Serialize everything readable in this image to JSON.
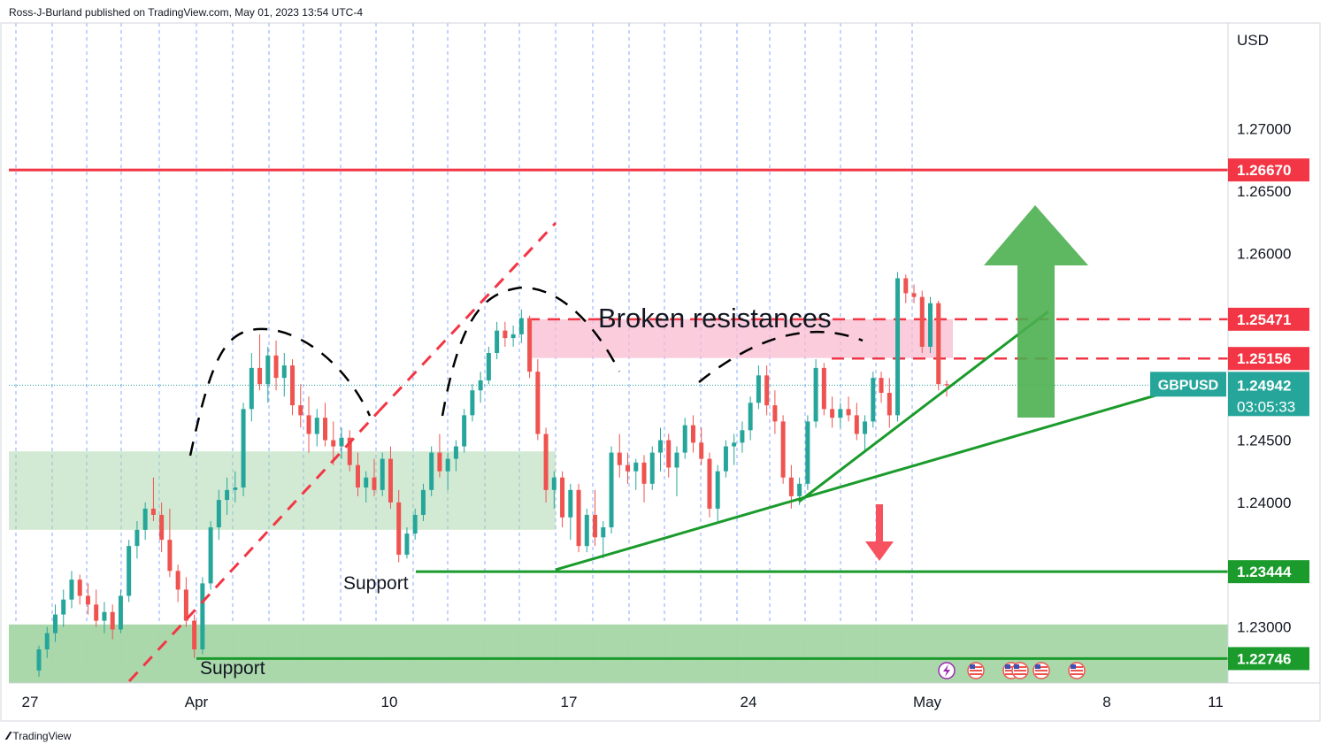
{
  "header": {
    "published_by": "Ross-J-Burland published on TradingView.com, May 01, 2023 13:54 UTC-4"
  },
  "footer": {
    "brand": "TradingView"
  },
  "colors": {
    "up": "#26a69a",
    "down": "#ef5350",
    "resistance": "#f23645",
    "support": "#1a9b2b",
    "arrow_up": "#4caf50",
    "arrow_down": "#f7525f",
    "zone_green": "#a5d6a7",
    "zone_pink": "#f8bbd0",
    "grid": "#2962ff"
  },
  "chart_data": {
    "type": "candlestick",
    "symbol": "GBPUSD",
    "currency": "USD",
    "ylim": [
      1.2255,
      1.2785
    ],
    "y_ticks": [
      "1.27000",
      "1.26500",
      "1.26000",
      "1.24500",
      "1.24000",
      "1.23000"
    ],
    "x_ticks": [
      "27",
      "Apr",
      "10",
      "17",
      "24",
      "May",
      "8",
      "11"
    ],
    "price_labels": [
      {
        "value": "1.26670",
        "kind": "resistance"
      },
      {
        "value": "1.25471",
        "kind": "resistance"
      },
      {
        "value": "1.25156",
        "kind": "resistance"
      },
      {
        "value": "1.23444",
        "kind": "support"
      },
      {
        "value": "1.22746",
        "kind": "support"
      }
    ],
    "last_price": {
      "symbol": "GBPUSD",
      "value": "1.24942",
      "countdown": "03:05:33"
    },
    "annotations": {
      "broken": "Broken resistances",
      "support_upper": "Support",
      "support_lower": "Support"
    },
    "horizontal_levels": {
      "resistance_top": 1.2667,
      "res1": 1.25471,
      "res2": 1.25156,
      "sup1": 1.23444,
      "sup2": 1.22746
    },
    "zones": [
      {
        "from": 1.2378,
        "to": 1.2441,
        "color": "green"
      },
      {
        "from": 1.2255,
        "to": 1.2302,
        "color": "green"
      },
      {
        "from": 1.2516,
        "to": 1.2547,
        "color": "pink"
      }
    ],
    "candles": [
      [
        1.2265,
        1.2285,
        1.226,
        1.2282
      ],
      [
        1.2282,
        1.23,
        1.2275,
        1.2295
      ],
      [
        1.2295,
        1.2318,
        1.2288,
        1.231
      ],
      [
        1.231,
        1.233,
        1.23,
        1.2322
      ],
      [
        1.2322,
        1.2345,
        1.2315,
        1.2338
      ],
      [
        1.2338,
        1.2342,
        1.2318,
        1.2325
      ],
      [
        1.2325,
        1.2335,
        1.231,
        1.2318
      ],
      [
        1.2318,
        1.233,
        1.23,
        1.2305
      ],
      [
        1.2305,
        1.232,
        1.2295,
        1.2312
      ],
      [
        1.2312,
        1.2318,
        1.229,
        1.2298
      ],
      [
        1.2298,
        1.233,
        1.2295,
        1.2325
      ],
      [
        1.2325,
        1.237,
        1.232,
        1.2365
      ],
      [
        1.2365,
        1.2385,
        1.2355,
        1.2378
      ],
      [
        1.2378,
        1.24,
        1.237,
        1.2395
      ],
      [
        1.2395,
        1.242,
        1.2385,
        1.239
      ],
      [
        1.239,
        1.24,
        1.236,
        1.237
      ],
      [
        1.237,
        1.2395,
        1.234,
        1.2345
      ],
      [
        1.2345,
        1.235,
        1.232,
        1.233
      ],
      [
        1.233,
        1.234,
        1.23,
        1.2305
      ],
      [
        1.2305,
        1.231,
        1.2275,
        1.2282
      ],
      [
        1.2282,
        1.234,
        1.2278,
        1.2335
      ],
      [
        1.2335,
        1.2385,
        1.233,
        1.238
      ],
      [
        1.238,
        1.241,
        1.237,
        1.2402
      ],
      [
        1.2402,
        1.242,
        1.239,
        1.241
      ],
      [
        1.241,
        1.2425,
        1.24,
        1.2412
      ],
      [
        1.2412,
        1.248,
        1.2405,
        1.2475
      ],
      [
        1.2475,
        1.252,
        1.2465,
        1.2508
      ],
      [
        1.2508,
        1.2535,
        1.249,
        1.2495
      ],
      [
        1.2495,
        1.2525,
        1.248,
        1.2518
      ],
      [
        1.2518,
        1.253,
        1.249,
        1.25
      ],
      [
        1.25,
        1.252,
        1.2485,
        1.251
      ],
      [
        1.251,
        1.2515,
        1.247,
        1.2478
      ],
      [
        1.2478,
        1.2495,
        1.246,
        1.247
      ],
      [
        1.247,
        1.2485,
        1.244,
        1.2455
      ],
      [
        1.2455,
        1.2475,
        1.2445,
        1.2468
      ],
      [
        1.2468,
        1.248,
        1.2445,
        1.245
      ],
      [
        1.245,
        1.2465,
        1.243,
        1.2445
      ],
      [
        1.2445,
        1.246,
        1.2435,
        1.2452
      ],
      [
        1.2452,
        1.2458,
        1.2425,
        1.243
      ],
      [
        1.243,
        1.244,
        1.2405,
        1.2412
      ],
      [
        1.2412,
        1.2425,
        1.24,
        1.242
      ],
      [
        1.242,
        1.2435,
        1.2405,
        1.241
      ],
      [
        1.241,
        1.244,
        1.2405,
        1.2435
      ],
      [
        1.2435,
        1.2445,
        1.2395,
        1.24
      ],
      [
        1.24,
        1.241,
        1.2352,
        1.2358
      ],
      [
        1.2358,
        1.238,
        1.2355,
        1.2375
      ],
      [
        1.2375,
        1.2395,
        1.237,
        1.239
      ],
      [
        1.239,
        1.2415,
        1.2385,
        1.241
      ],
      [
        1.241,
        1.2445,
        1.2405,
        1.244
      ],
      [
        1.244,
        1.2455,
        1.242,
        1.2425
      ],
      [
        1.2425,
        1.244,
        1.241,
        1.2435
      ],
      [
        1.2435,
        1.245,
        1.2425,
        1.2445
      ],
      [
        1.2445,
        1.2475,
        1.244,
        1.247
      ],
      [
        1.247,
        1.2495,
        1.2465,
        1.249
      ],
      [
        1.249,
        1.2505,
        1.248,
        1.2498
      ],
      [
        1.2498,
        1.2525,
        1.2495,
        1.252
      ],
      [
        1.252,
        1.2545,
        1.2515,
        1.2538
      ],
      [
        1.2538,
        1.2545,
        1.2525,
        1.2532
      ],
      [
        1.2532,
        1.2542,
        1.2525,
        1.2535
      ],
      [
        1.2535,
        1.2555,
        1.2528,
        1.2548
      ],
      [
        1.2548,
        1.255,
        1.25,
        1.2505
      ],
      [
        1.2505,
        1.2515,
        1.245,
        1.2455
      ],
      [
        1.2455,
        1.246,
        1.24,
        1.241
      ],
      [
        1.241,
        1.2425,
        1.2395,
        1.242
      ],
      [
        1.242,
        1.2425,
        1.238,
        1.2388
      ],
      [
        1.2388,
        1.2415,
        1.237,
        1.241
      ],
      [
        1.241,
        1.2415,
        1.236,
        1.2365
      ],
      [
        1.2365,
        1.2395,
        1.236,
        1.239
      ],
      [
        1.239,
        1.241,
        1.2365,
        1.2372
      ],
      [
        1.2372,
        1.2385,
        1.2355,
        1.238
      ],
      [
        1.238,
        1.2445,
        1.2375,
        1.244
      ],
      [
        1.244,
        1.2455,
        1.242,
        1.243
      ],
      [
        1.243,
        1.244,
        1.2415,
        1.2425
      ],
      [
        1.2425,
        1.2435,
        1.241,
        1.2432
      ],
      [
        1.2432,
        1.2438,
        1.24,
        1.2415
      ],
      [
        1.2415,
        1.2445,
        1.241,
        1.244
      ],
      [
        1.244,
        1.246,
        1.2425,
        1.245
      ],
      [
        1.245,
        1.2455,
        1.242,
        1.2428
      ],
      [
        1.2428,
        1.2445,
        1.2405,
        1.244
      ],
      [
        1.244,
        1.2468,
        1.2435,
        1.2462
      ],
      [
        1.2462,
        1.247,
        1.244,
        1.2448
      ],
      [
        1.2448,
        1.246,
        1.243,
        1.2435
      ],
      [
        1.2435,
        1.244,
        1.2388,
        1.2395
      ],
      [
        1.2395,
        1.243,
        1.2385,
        1.2425
      ],
      [
        1.2425,
        1.245,
        1.242,
        1.2445
      ],
      [
        1.2445,
        1.2455,
        1.243,
        1.2448
      ],
      [
        1.2448,
        1.2465,
        1.244,
        1.2458
      ],
      [
        1.2458,
        1.2485,
        1.245,
        1.248
      ],
      [
        1.248,
        1.251,
        1.2475,
        1.2502
      ],
      [
        1.2502,
        1.251,
        1.247,
        1.2478
      ],
      [
        1.2478,
        1.249,
        1.2455,
        1.2465
      ],
      [
        1.2465,
        1.247,
        1.2415,
        1.242
      ],
      [
        1.242,
        1.243,
        1.2395,
        1.2405
      ],
      [
        1.2405,
        1.242,
        1.2398,
        1.2415
      ],
      [
        1.2415,
        1.247,
        1.241,
        1.2465
      ],
      [
        1.2465,
        1.2515,
        1.246,
        1.2508
      ],
      [
        1.2508,
        1.2512,
        1.247,
        1.2475
      ],
      [
        1.2475,
        1.2485,
        1.246,
        1.2468
      ],
      [
        1.2468,
        1.248,
        1.246,
        1.2475
      ],
      [
        1.2475,
        1.2485,
        1.2465,
        1.247
      ],
      [
        1.247,
        1.248,
        1.245,
        1.2455
      ],
      [
        1.2455,
        1.247,
        1.244,
        1.2465
      ],
      [
        1.2465,
        1.2505,
        1.246,
        1.25
      ],
      [
        1.25,
        1.2505,
        1.248,
        1.2488
      ],
      [
        1.2488,
        1.25,
        1.246,
        1.247
      ],
      [
        1.247,
        1.2585,
        1.2465,
        1.258
      ],
      [
        1.258,
        1.2583,
        1.256,
        1.2568
      ],
      [
        1.2568,
        1.2575,
        1.256,
        1.2565
      ],
      [
        1.2565,
        1.257,
        1.252,
        1.2525
      ],
      [
        1.2525,
        1.2565,
        1.252,
        1.256
      ],
      [
        1.256,
        1.2562,
        1.249,
        1.2495
      ],
      [
        1.2495,
        1.2498,
        1.2485,
        1.2494
      ]
    ]
  }
}
